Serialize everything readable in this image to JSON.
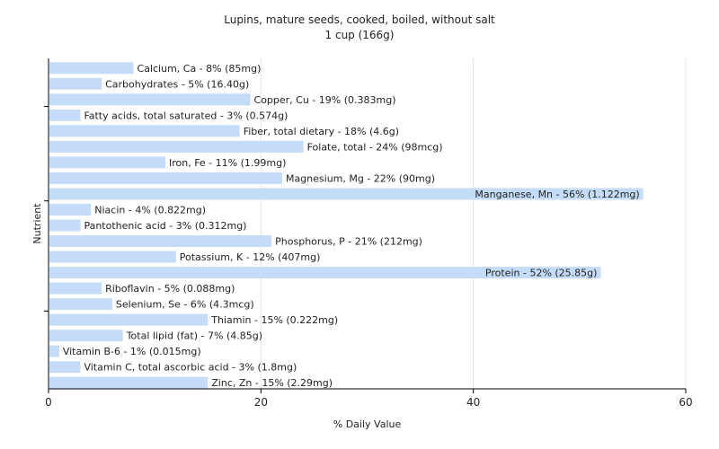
{
  "chart_data": {
    "type": "bar",
    "orientation": "horizontal",
    "title": "Lupins, mature seeds, cooked, boiled, without salt",
    "subtitle": "1 cup (166g)",
    "xlabel": "% Daily Value",
    "ylabel": "Nutrient",
    "xlim": [
      0,
      60
    ],
    "xticks": [
      0,
      20,
      40,
      60
    ],
    "grid": true,
    "bar_color": "#c5dcf9",
    "categories": [
      "Calcium, Ca",
      "Carbohydrates",
      "Copper, Cu",
      "Fatty acids, total saturated",
      "Fiber, total dietary",
      "Folate, total",
      "Iron, Fe",
      "Magnesium, Mg",
      "Manganese, Mn",
      "Niacin",
      "Pantothenic acid",
      "Phosphorus, P",
      "Potassium, K",
      "Protein",
      "Riboflavin",
      "Selenium, Se",
      "Thiamin",
      "Total lipid (fat)",
      "Vitamin B-6",
      "Vitamin C, total ascorbic acid",
      "Zinc, Zn"
    ],
    "values": [
      8,
      5,
      19,
      3,
      18,
      24,
      11,
      22,
      56,
      4,
      3,
      21,
      12,
      52,
      5,
      6,
      15,
      7,
      1,
      3,
      15
    ],
    "labels": [
      "Calcium, Ca - 8% (85mg)",
      "Carbohydrates - 5% (16.40g)",
      "Copper, Cu - 19% (0.383mg)",
      "Fatty acids, total saturated - 3% (0.574g)",
      "Fiber, total dietary - 18% (4.6g)",
      "Folate, total - 24% (98mcg)",
      "Iron, Fe - 11% (1.99mg)",
      "Magnesium, Mg - 22% (90mg)",
      "Manganese, Mn - 56% (1.122mg)",
      "Niacin - 4% (0.822mg)",
      "Pantothenic acid - 3% (0.312mg)",
      "Phosphorus, P - 21% (212mg)",
      "Potassium, K - 12% (407mg)",
      "Protein - 52% (25.85g)",
      "Riboflavin - 5% (0.088mg)",
      "Selenium, Se - 6% (4.3mcg)",
      "Thiamin - 15% (0.222mg)",
      "Total lipid (fat) - 7% (4.85g)",
      "Vitamin B-6 - 1% (0.015mg)",
      "Vitamin C, total ascorbic acid - 3% (1.8mg)",
      "Zinc, Zn - 15% (2.29mg)"
    ]
  }
}
